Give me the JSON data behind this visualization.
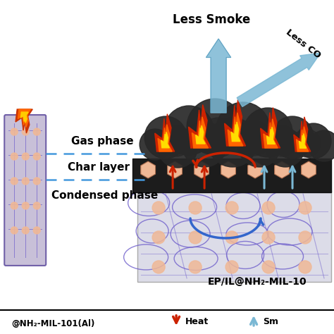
{
  "bg_color": "#ffffff",
  "less_smoke_text": "Less Smoke",
  "less_co_text": "Less CO",
  "gas_phase_text": "Gas phase",
  "char_layer_text": "Char layer",
  "condensed_phase_text": "Condensed phase",
  "label_ep_il": "EP/IL@NH₂-MIL-10",
  "label_bottom_left": "@NH₂-MIL-101(Al)",
  "label_heat": "Heat",
  "label_smoke": "Sm",
  "arrow_smoke_color": "#7bb8d4",
  "arrow_heat_color": "#cc2200",
  "hex_color": "#f0b896",
  "network_color": "#7060cc",
  "dashed_line_color": "#4499dd",
  "smoke_dark": "#282828",
  "char_dark": "#222222",
  "condensed_bg": "#dcdce8"
}
